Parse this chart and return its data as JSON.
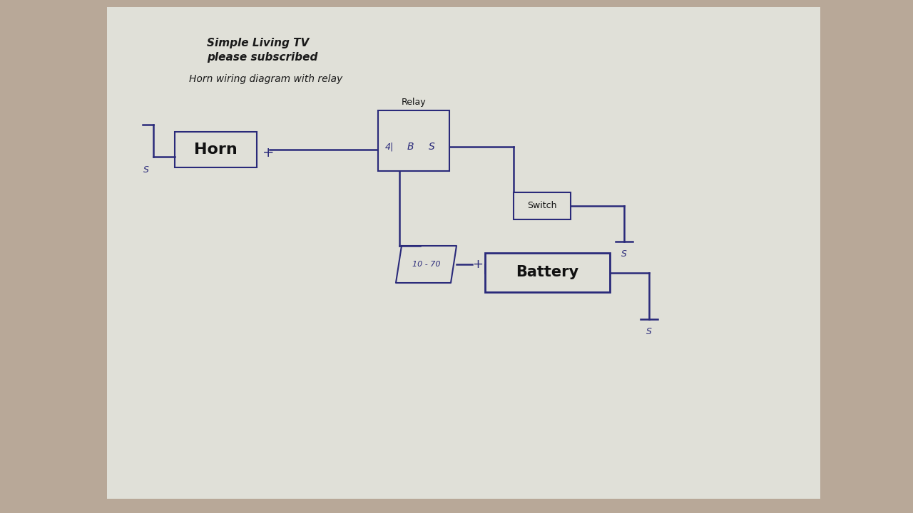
{
  "title1": "Simple Living TV",
  "title2": "please subscribed",
  "subtitle": "Horn wiring diagram with relay",
  "bg_color": "#b8a898",
  "paper_color": "#e0e0d8",
  "wire_color": "#2a2a7a",
  "wire_lw": 1.8,
  "horn_label": "Horn",
  "relay_label": "Relay",
  "switch_label": "Switch",
  "battery_label": "Battery",
  "fuse_label": "10 - 70"
}
